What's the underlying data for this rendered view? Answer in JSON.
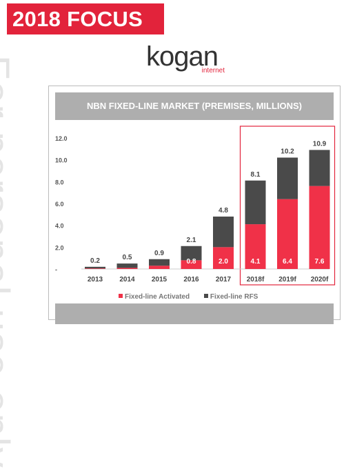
{
  "header": {
    "badge": "2018 FOCUS"
  },
  "watermark": {
    "text": "For personal use only"
  },
  "logo": {
    "word": "kogan",
    "sub": "internet"
  },
  "colors": {
    "activated": "#f03148",
    "rfs": "#4a4a4a",
    "highlight": "#e2233b",
    "axis_text": "#555555"
  },
  "chart_data": {
    "type": "bar",
    "stacked": true,
    "title": "NBN FIXED-LINE MARKET (PREMISES, MILLIONS)",
    "categories": [
      "2013",
      "2014",
      "2015",
      "2016",
      "2017",
      "2018f",
      "2019f",
      "2020f"
    ],
    "series": [
      {
        "name": "Fixed-line Activated",
        "values": [
          0.05,
          0.1,
          0.3,
          0.8,
          2.0,
          4.1,
          6.4,
          7.6
        ]
      },
      {
        "name": "Fixed-line RFS",
        "values": [
          0.15,
          0.4,
          0.6,
          1.3,
          2.8,
          4.0,
          3.8,
          3.3
        ]
      }
    ],
    "totals": [
      0.2,
      0.5,
      0.9,
      2.1,
      4.8,
      8.1,
      10.2,
      10.9
    ],
    "activated_labels": [
      "",
      "",
      "",
      "0.8",
      "2.0",
      "4.1",
      "6.4",
      "7.6"
    ],
    "yticks": [
      "-",
      "2.0",
      "4.0",
      "6.0",
      "8.0",
      "10.0",
      "12.0"
    ],
    "ylim": [
      0,
      12
    ],
    "legend_position": "bottom",
    "highlighted_categories": [
      "2018f",
      "2019f",
      "2020f"
    ]
  }
}
